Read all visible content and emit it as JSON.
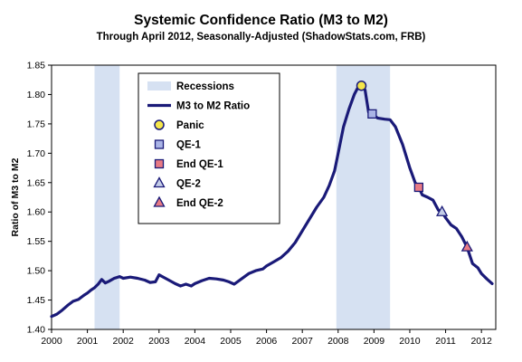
{
  "chart_title": "Systemic Confidence Ratio (M3 to M2)",
  "chart_subtitle": "Through April 2012, Seasonally-Adjusted (ShadowStats.com, FRB)",
  "colors": {
    "line": "#1a1a78",
    "recession_band": "#d6e1f2",
    "panic_marker": "#f5e64a",
    "qe1_marker": "#aab4e6",
    "end_qe1_marker": "#e87a84",
    "qe2_marker": "#c4cde8",
    "end_qe2_marker": "#e87a84"
  },
  "chart_data": {
    "type": "line",
    "title": "Systemic Confidence Ratio (M3 to M2)",
    "subtitle": "Through April 2012, Seasonally-Adjusted (ShadowStats.com, FRB)",
    "xlabel": "",
    "ylabel": "Ratio of M3 to M2",
    "xlim": [
      2000,
      2012.4
    ],
    "ylim": [
      1.4,
      1.85
    ],
    "x_ticks": [
      "2000",
      "2001",
      "2002",
      "2003",
      "2004",
      "2005",
      "2006",
      "2007",
      "2008",
      "2009",
      "2010",
      "2011",
      "2012"
    ],
    "y_ticks": [
      "1.40",
      "1.45",
      "1.50",
      "1.55",
      "1.60",
      "1.65",
      "1.70",
      "1.75",
      "1.80",
      "1.85"
    ],
    "grid": false,
    "legend_position": "upper-left",
    "recessions": [
      {
        "start": 2001.2,
        "end": 2001.9
      },
      {
        "start": 2007.95,
        "end": 2009.45
      }
    ],
    "series": [
      {
        "name": "M3 to M2 Ratio",
        "x": [
          2000.0,
          2000.15,
          2000.3,
          2000.45,
          2000.6,
          2000.75,
          2000.9,
          2001.0,
          2001.1,
          2001.2,
          2001.3,
          2001.4,
          2001.5,
          2001.6,
          2001.75,
          2001.9,
          2002.0,
          2002.2,
          2002.4,
          2002.6,
          2002.75,
          2002.9,
          2003.0,
          2003.15,
          2003.3,
          2003.45,
          2003.6,
          2003.75,
          2003.9,
          2004.0,
          2004.2,
          2004.4,
          2004.6,
          2004.8,
          2004.95,
          2005.1,
          2005.3,
          2005.5,
          2005.7,
          2005.9,
          2006.0,
          2006.2,
          2006.4,
          2006.6,
          2006.8,
          2007.0,
          2007.2,
          2007.4,
          2007.6,
          2007.75,
          2007.9,
          2008.0,
          2008.15,
          2008.3,
          2008.45,
          2008.55,
          2008.65,
          2008.75,
          2008.85,
          2008.95,
          2009.1,
          2009.3,
          2009.45,
          2009.6,
          2009.8,
          2010.0,
          2010.15,
          2010.25,
          2010.35,
          2010.5,
          2010.65,
          2010.8,
          2010.9,
          2011.0,
          2011.15,
          2011.3,
          2011.45,
          2011.6,
          2011.75,
          2011.9,
          2012.0,
          2012.15,
          2012.3
        ],
        "values": [
          1.422,
          1.426,
          1.433,
          1.441,
          1.448,
          1.451,
          1.458,
          1.462,
          1.467,
          1.471,
          1.477,
          1.485,
          1.479,
          1.482,
          1.487,
          1.49,
          1.487,
          1.489,
          1.487,
          1.484,
          1.48,
          1.481,
          1.493,
          1.488,
          1.483,
          1.478,
          1.474,
          1.477,
          1.474,
          1.478,
          1.483,
          1.487,
          1.486,
          1.484,
          1.481,
          1.477,
          1.486,
          1.495,
          1.5,
          1.503,
          1.508,
          1.515,
          1.522,
          1.533,
          1.548,
          1.568,
          1.588,
          1.608,
          1.625,
          1.645,
          1.67,
          1.7,
          1.745,
          1.775,
          1.8,
          1.812,
          1.815,
          1.808,
          1.77,
          1.767,
          1.76,
          1.758,
          1.757,
          1.745,
          1.715,
          1.675,
          1.65,
          1.642,
          1.629,
          1.625,
          1.62,
          1.603,
          1.6,
          1.59,
          1.578,
          1.572,
          1.558,
          1.54,
          1.512,
          1.505,
          1.495,
          1.486,
          1.478
        ]
      }
    ],
    "markers": [
      {
        "name": "Panic",
        "shape": "circle",
        "x": 2008.65,
        "y": 1.815
      },
      {
        "name": "QE-1",
        "shape": "square",
        "x": 2008.95,
        "y": 1.767
      },
      {
        "name": "End QE-1",
        "shape": "square",
        "x": 2010.25,
        "y": 1.642
      },
      {
        "name": "QE-2",
        "shape": "triangle",
        "x": 2010.9,
        "y": 1.6
      },
      {
        "name": "End QE-2",
        "shape": "triangle",
        "x": 2011.6,
        "y": 1.54
      }
    ],
    "legend": [
      {
        "label": "Recessions",
        "kind": "band"
      },
      {
        "label": "M3 to M2 Ratio",
        "kind": "line"
      },
      {
        "label": "Panic",
        "kind": "circle"
      },
      {
        "label": "QE-1",
        "kind": "square"
      },
      {
        "label": "End QE-1",
        "kind": "square"
      },
      {
        "label": "QE-2",
        "kind": "triangle"
      },
      {
        "label": "End QE-2",
        "kind": "triangle"
      }
    ]
  }
}
